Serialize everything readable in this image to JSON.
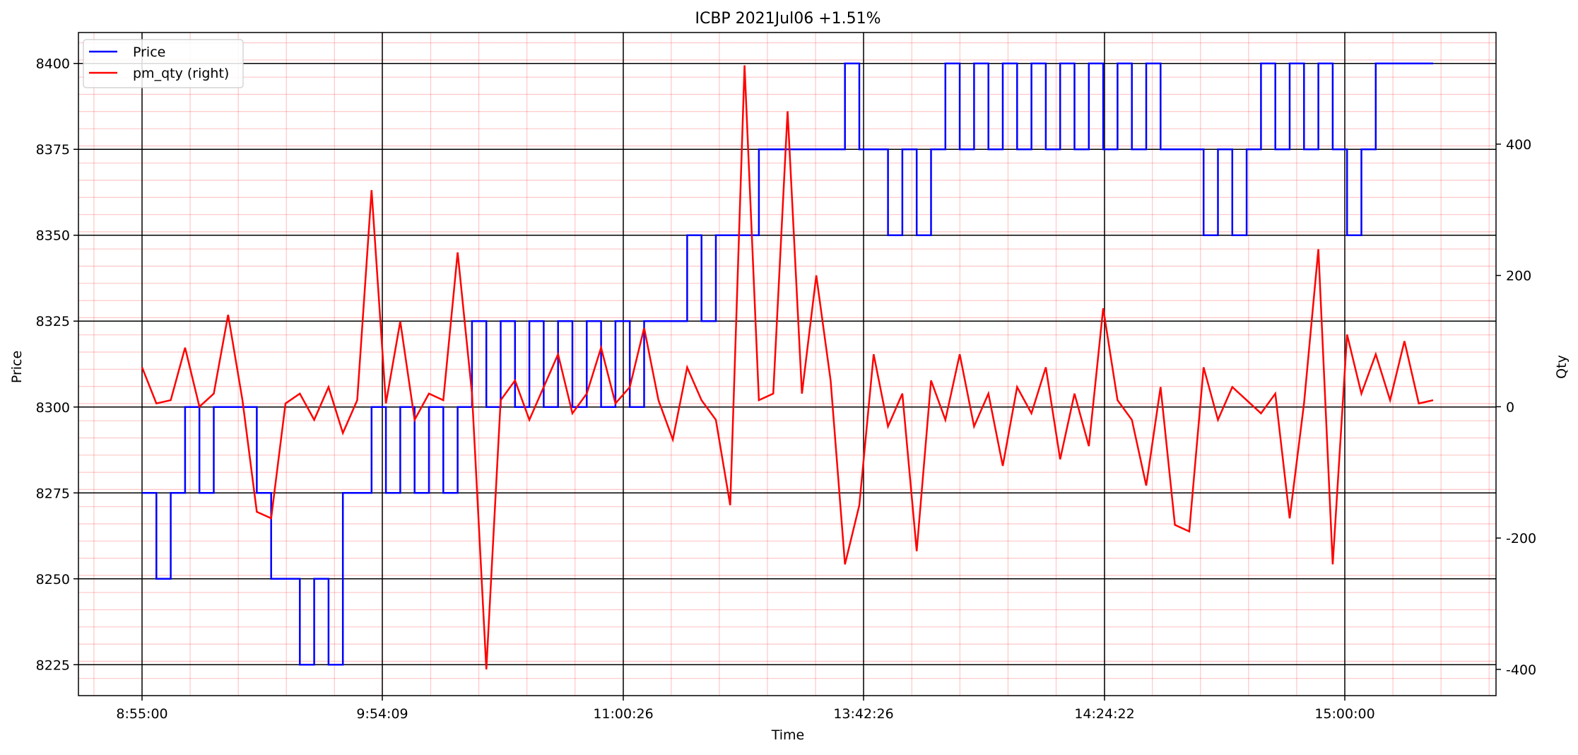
{
  "chart_data": {
    "type": "line",
    "title": "ICBP 2021Jul06 +1.51%",
    "xlabel": "Time",
    "ylabel": "Price",
    "ylabel_right": "Qty",
    "legend_position": "top-left",
    "grid": "on",
    "x_tick_labels": [
      "8:55:00",
      "9:54:09",
      "11:00:26",
      "13:42:26",
      "14:24:22",
      "15:00:00"
    ],
    "y_left_ticks": [
      8225,
      8250,
      8275,
      8300,
      8325,
      8350,
      8375,
      8400
    ],
    "y_right_ticks": [
      -400,
      -200,
      0,
      200,
      400
    ],
    "ylim_left": [
      8216,
      8409
    ],
    "ylim_right": [
      -440,
      570
    ],
    "series": [
      {
        "name": "Price",
        "axis": "left",
        "color": "#0000ff",
        "note": "values sampled at trade index 0-100",
        "x": [
          0,
          1,
          2,
          3,
          4,
          5,
          6,
          7,
          8,
          9,
          10,
          11,
          12,
          13,
          14,
          15,
          16,
          17,
          18,
          19,
          20,
          21,
          22,
          23,
          24,
          25,
          26,
          27,
          28,
          29,
          30,
          31,
          32,
          33,
          34,
          35,
          36,
          37,
          38,
          39,
          40,
          41,
          42,
          43,
          44,
          45,
          46,
          47,
          48,
          49,
          50,
          51,
          52,
          53,
          54,
          55,
          56,
          57,
          58,
          59,
          60,
          61,
          62,
          63,
          64,
          65,
          66,
          67,
          68,
          69,
          70,
          71,
          72,
          73,
          74,
          75,
          76,
          77,
          78,
          79,
          80,
          81,
          82,
          83,
          84,
          85,
          86,
          87,
          88,
          89,
          90
        ],
        "values": [
          8275,
          8250,
          8275,
          8300,
          8275,
          8300,
          8300,
          8300,
          8275,
          8250,
          8250,
          8225,
          8250,
          8225,
          8275,
          8275,
          8300,
          8275,
          8300,
          8275,
          8300,
          8275,
          8300,
          8325,
          8300,
          8325,
          8300,
          8325,
          8300,
          8325,
          8300,
          8325,
          8300,
          8325,
          8300,
          8325,
          8325,
          8325,
          8350,
          8325,
          8350,
          8350,
          8350,
          8375,
          8375,
          8375,
          8375,
          8375,
          8375,
          8400,
          8375,
          8375,
          8350,
          8375,
          8350,
          8375,
          8400,
          8375,
          8400,
          8375,
          8400,
          8375,
          8400,
          8375,
          8400,
          8375,
          8400,
          8375,
          8400,
          8375,
          8400,
          8375,
          8375,
          8375,
          8350,
          8375,
          8350,
          8375,
          8400,
          8375,
          8400,
          8375,
          8400,
          8375,
          8350,
          8375,
          8400,
          8400,
          8400,
          8400,
          8400
        ]
      },
      {
        "name": "pm_qty (right)",
        "axis": "right",
        "color": "#ff0000",
        "x": [
          0,
          1,
          2,
          3,
          4,
          5,
          6,
          7,
          8,
          9,
          10,
          11,
          12,
          13,
          14,
          15,
          16,
          17,
          18,
          19,
          20,
          21,
          22,
          23,
          24,
          25,
          26,
          27,
          28,
          29,
          30,
          31,
          32,
          33,
          34,
          35,
          36,
          37,
          38,
          39,
          40,
          41,
          42,
          43,
          44,
          45,
          46,
          47,
          48,
          49,
          50,
          51,
          52,
          53,
          54,
          55,
          56,
          57,
          58,
          59,
          60,
          61,
          62,
          63,
          64,
          65,
          66,
          67,
          68,
          69,
          70,
          71,
          72,
          73,
          74,
          75,
          76,
          77,
          78,
          79,
          80,
          81,
          82,
          83,
          84,
          85,
          86,
          87,
          88,
          89,
          90
        ],
        "values": [
          60,
          5,
          10,
          90,
          0,
          20,
          140,
          10,
          -160,
          -170,
          5,
          20,
          -20,
          30,
          -40,
          10,
          330,
          5,
          130,
          -20,
          20,
          10,
          235,
          20,
          -400,
          10,
          40,
          -20,
          30,
          80,
          -10,
          20,
          90,
          5,
          30,
          120,
          10,
          -50,
          60,
          10,
          -20,
          -150,
          520,
          10,
          20,
          450,
          20,
          200,
          40,
          -240,
          -150,
          80,
          -30,
          20,
          -220,
          40,
          -20,
          80,
          -30,
          20,
          -90,
          30,
          -10,
          60,
          -80,
          20,
          -60,
          150,
          10,
          -20,
          -120,
          30,
          -180,
          -190,
          60,
          -20,
          30,
          10,
          -10,
          20,
          -170,
          5,
          240,
          -240,
          110,
          20,
          80,
          10,
          100,
          5,
          10
        ]
      }
    ]
  }
}
